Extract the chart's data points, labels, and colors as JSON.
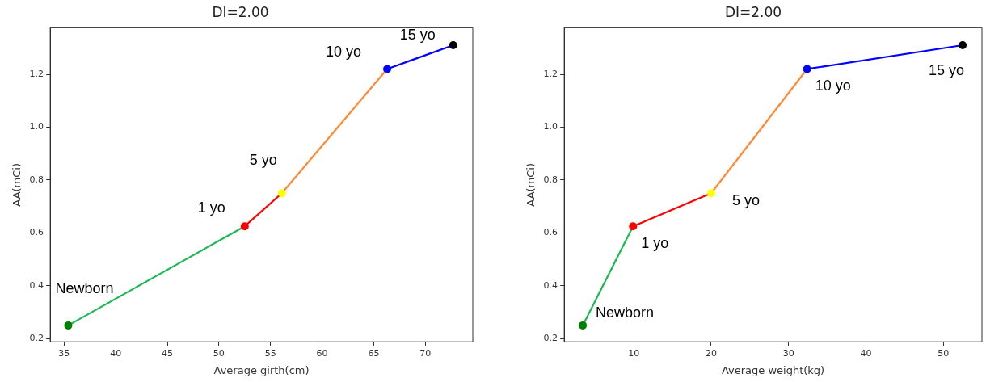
{
  "chart_data": [
    {
      "type": "line",
      "title": "DI=2.00",
      "xlabel": "Average girth(cm)",
      "ylabel": "AA(mCi)",
      "marker": "none",
      "line_style": "solid",
      "xlim": [
        33.65,
        74.6
      ],
      "xticks": [
        35,
        40,
        45,
        50,
        55,
        60,
        65,
        70
      ],
      "ylim": [
        0.188,
        1.376
      ],
      "yticks": [
        {
          "value": 0.2,
          "label": "0.2"
        },
        {
          "value": 0.4,
          "label": "0.4"
        },
        {
          "value": 0.6,
          "label": "0.6"
        },
        {
          "value": 0.8,
          "label": "0.8"
        },
        {
          "value": 1,
          "label": "1.0"
        },
        {
          "value": 1.2,
          "label": "1.2"
        }
      ],
      "series": [
        {
          "color": "#1db954",
          "x": [
            35.4,
            52.5
          ],
          "values": [
            0.25,
            0.625
          ]
        },
        {
          "color": "#ff0000",
          "x": [
            52.5,
            56.1
          ],
          "values": [
            0.625,
            0.75
          ]
        },
        {
          "color": "#ff8833",
          "x": [
            56.1,
            66.3
          ],
          "values": [
            0.75,
            1.22
          ]
        },
        {
          "color": "#0000ff",
          "x": [
            66.3,
            72.7
          ],
          "values": [
            1.22,
            1.31
          ]
        },
        {
          "type": "scatter",
          "marker": "circle",
          "x": [
            35.4,
            52.5,
            56.1,
            66.3,
            72.7
          ],
          "values": [
            0.25,
            0.625,
            0.75,
            1.22,
            1.31
          ],
          "colors": [
            "#008000",
            "#ff0000",
            "#ffff00",
            "#0000ff",
            "#000000"
          ]
        }
      ],
      "annotations": [
        {
          "text": "Newborn",
          "x": 35.4,
          "y": 0.25
        },
        {
          "text": "1 yo",
          "x": 52.5,
          "y": 0.625
        },
        {
          "text": "5 yo",
          "x": 56.1,
          "y": 0.75
        },
        {
          "text": "10 yo",
          "x": 66.3,
          "y": 1.22
        },
        {
          "text": "15 yo",
          "x": 72.7,
          "y": 1.31
        }
      ]
    },
    {
      "type": "line",
      "title": "DI=2.00",
      "xlabel": "Average weight(kg)",
      "ylabel": "AA(mCi)",
      "marker": "none",
      "line_style": "solid",
      "xlim": [
        1.0,
        55.0
      ],
      "xticks": [
        10,
        20,
        30,
        40,
        50
      ],
      "ylim": [
        0.188,
        1.376
      ],
      "yticks": [
        {
          "value": 0.2,
          "label": "0.2"
        },
        {
          "value": 0.4,
          "label": "0.4"
        },
        {
          "value": 0.6,
          "label": "0.6"
        },
        {
          "value": 0.8,
          "label": "0.8"
        },
        {
          "value": 1,
          "label": "1.0"
        },
        {
          "value": 1.2,
          "label": "1.2"
        }
      ],
      "series": [
        {
          "color": "#1db954",
          "x": [
            3.4,
            9.9
          ],
          "values": [
            0.25,
            0.625
          ]
        },
        {
          "color": "#ff0000",
          "x": [
            9.9,
            20
          ],
          "values": [
            0.625,
            0.75
          ]
        },
        {
          "color": "#ff8833",
          "x": [
            20,
            32.4
          ],
          "values": [
            0.75,
            1.22
          ]
        },
        {
          "color": "#0000ff",
          "x": [
            32.4,
            52.5
          ],
          "values": [
            1.22,
            1.31
          ]
        },
        {
          "type": "scatter",
          "marker": "circle",
          "x": [
            3.4,
            9.9,
            20,
            32.4,
            52.5
          ],
          "values": [
            0.25,
            0.625,
            0.75,
            1.22,
            1.31
          ],
          "colors": [
            "#008000",
            "#ff0000",
            "#ffff00",
            "#0000ff",
            "#000000"
          ]
        }
      ],
      "annotations": [
        {
          "text": "Newborn",
          "x": 3.4,
          "y": 0.25
        },
        {
          "text": "1 yo",
          "x": 9.9,
          "y": 0.625
        },
        {
          "text": "5 yo",
          "x": 20,
          "y": 0.75
        },
        {
          "text": "10 yo",
          "x": 32.4,
          "y": 1.22
        },
        {
          "text": "15 yo",
          "x": 52.5,
          "y": 1.31
        }
      ]
    }
  ]
}
